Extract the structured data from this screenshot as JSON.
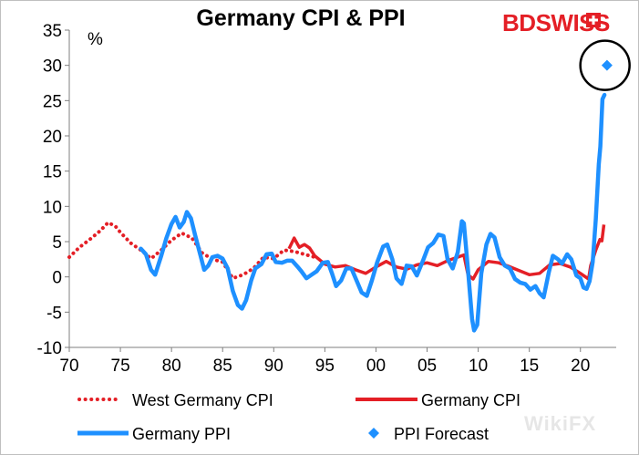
{
  "brand": {
    "name_part1": "BD",
    "name_part2": "SWISS",
    "color": "#e41f26"
  },
  "watermark": "WikiFX",
  "chart_data": {
    "type": "line",
    "title": "Germany CPI & PPI",
    "ylabel": "%",
    "xlabel": "",
    "ylim": [
      -10,
      35
    ],
    "yticks": [
      35,
      30,
      25,
      20,
      15,
      10,
      5,
      0,
      -5,
      -10
    ],
    "xlim": [
      1970,
      2023.5
    ],
    "xticks": [
      {
        "year": 1970,
        "label": "70"
      },
      {
        "year": 1975,
        "label": "75"
      },
      {
        "year": 1980,
        "label": "80"
      },
      {
        "year": 1985,
        "label": "85"
      },
      {
        "year": 1990,
        "label": "90"
      },
      {
        "year": 1995,
        "label": "95"
      },
      {
        "year": 2000,
        "label": "00"
      },
      {
        "year": 2005,
        "label": "05"
      },
      {
        "year": 2010,
        "label": "10"
      },
      {
        "year": 2015,
        "label": "15"
      },
      {
        "year": 2020,
        "label": "20"
      }
    ],
    "series": [
      {
        "name": "West Germany CPI",
        "style": "dotted",
        "color": "#e41f26",
        "points": [
          [
            1970,
            2.8
          ],
          [
            1971,
            4.2
          ],
          [
            1972,
            5.3
          ],
          [
            1973,
            6.5
          ],
          [
            1973.8,
            7.7
          ],
          [
            1974.5,
            7.2
          ],
          [
            1975,
            6.3
          ],
          [
            1976,
            4.8
          ],
          [
            1977,
            3.8
          ],
          [
            1978,
            2.6
          ],
          [
            1979,
            3.8
          ],
          [
            1980,
            5.2
          ],
          [
            1981,
            6.2
          ],
          [
            1982,
            5.5
          ],
          [
            1983,
            3.4
          ],
          [
            1984,
            2.5
          ],
          [
            1985,
            2.1
          ],
          [
            1986,
            -0.2
          ],
          [
            1987,
            0.3
          ],
          [
            1988,
            1.2
          ],
          [
            1989,
            2.8
          ],
          [
            1990,
            2.6
          ],
          [
            1991,
            3.8
          ],
          [
            1992,
            3.6
          ],
          [
            1993,
            3.2
          ],
          [
            1994,
            2.8
          ]
        ]
      },
      {
        "name": "Germany CPI",
        "style": "solid-red",
        "color": "#e41f26",
        "points": [
          [
            1991.5,
            4.0
          ],
          [
            1992,
            5.5
          ],
          [
            1992.5,
            4.2
          ],
          [
            1993,
            4.6
          ],
          [
            1993.5,
            4.1
          ],
          [
            1994,
            3.0
          ],
          [
            1995,
            1.8
          ],
          [
            1996,
            1.4
          ],
          [
            1997,
            1.6
          ],
          [
            1998,
            1.0
          ],
          [
            1999,
            0.5
          ],
          [
            2000,
            1.4
          ],
          [
            2001,
            2.2
          ],
          [
            2002,
            1.4
          ],
          [
            2003,
            1.1
          ],
          [
            2004,
            1.7
          ],
          [
            2005,
            2.0
          ],
          [
            2006,
            1.6
          ],
          [
            2007,
            2.3
          ],
          [
            2008,
            2.8
          ],
          [
            2008.6,
            3.1
          ],
          [
            2009,
            0.3
          ],
          [
            2009.5,
            -0.3
          ],
          [
            2010,
            1.0
          ],
          [
            2011,
            2.2
          ],
          [
            2012,
            2.0
          ],
          [
            2013,
            1.5
          ],
          [
            2014,
            0.9
          ],
          [
            2015,
            0.3
          ],
          [
            2016,
            0.5
          ],
          [
            2017,
            1.7
          ],
          [
            2018,
            1.9
          ],
          [
            2019,
            1.4
          ],
          [
            2020,
            0.5
          ],
          [
            2020.8,
            -0.3
          ],
          [
            2021,
            1.6
          ],
          [
            2021.5,
            3.8
          ],
          [
            2021.9,
            5.3
          ],
          [
            2022.1,
            5.1
          ],
          [
            2022.3,
            7.4
          ]
        ]
      },
      {
        "name": "Germany PPI",
        "style": "solid-blue",
        "color": "#1e90ff",
        "points": [
          [
            1977,
            4.0
          ],
          [
            1977.5,
            3.2
          ],
          [
            1978,
            1.0
          ],
          [
            1978.4,
            0.3
          ],
          [
            1979,
            3.0
          ],
          [
            1979.5,
            5.5
          ],
          [
            1980,
            7.5
          ],
          [
            1980.4,
            8.5
          ],
          [
            1980.8,
            7.0
          ],
          [
            1981.2,
            7.8
          ],
          [
            1981.5,
            9.2
          ],
          [
            1981.9,
            8.3
          ],
          [
            1982.3,
            6.0
          ],
          [
            1982.8,
            3.2
          ],
          [
            1983.2,
            1.0
          ],
          [
            1983.6,
            1.6
          ],
          [
            1984,
            2.8
          ],
          [
            1984.5,
            3.0
          ],
          [
            1985,
            2.6
          ],
          [
            1985.5,
            1.2
          ],
          [
            1986,
            -2.0
          ],
          [
            1986.5,
            -4.0
          ],
          [
            1986.9,
            -4.5
          ],
          [
            1987.3,
            -3.3
          ],
          [
            1987.8,
            -0.5
          ],
          [
            1988.2,
            1.2
          ],
          [
            1988.8,
            1.8
          ],
          [
            1989.3,
            3.2
          ],
          [
            1989.8,
            3.3
          ],
          [
            1990.2,
            2.1
          ],
          [
            1990.8,
            2.0
          ],
          [
            1991.3,
            2.3
          ],
          [
            1991.8,
            2.3
          ],
          [
            1992.3,
            1.5
          ],
          [
            1992.7,
            0.8
          ],
          [
            1993.2,
            -0.2
          ],
          [
            1993.7,
            0.3
          ],
          [
            1994.2,
            0.8
          ],
          [
            1994.8,
            2.0
          ],
          [
            1995.3,
            2.1
          ],
          [
            1995.7,
            0.5
          ],
          [
            1996.1,
            -1.3
          ],
          [
            1996.6,
            -0.5
          ],
          [
            1997.1,
            1.2
          ],
          [
            1997.6,
            1.2
          ],
          [
            1998.1,
            -0.5
          ],
          [
            1998.6,
            -2.2
          ],
          [
            1999.1,
            -2.7
          ],
          [
            1999.6,
            -0.5
          ],
          [
            2000.1,
            2.0
          ],
          [
            2000.7,
            4.3
          ],
          [
            2001.1,
            4.6
          ],
          [
            2001.6,
            2.5
          ],
          [
            2002,
            -0.2
          ],
          [
            2002.5,
            -1.0
          ],
          [
            2003,
            1.6
          ],
          [
            2003.5,
            1.5
          ],
          [
            2004,
            0.2
          ],
          [
            2004.6,
            2.3
          ],
          [
            2005.1,
            4.2
          ],
          [
            2005.6,
            4.8
          ],
          [
            2006.1,
            6.0
          ],
          [
            2006.6,
            5.8
          ],
          [
            2007,
            2.5
          ],
          [
            2007.5,
            1.2
          ],
          [
            2008,
            3.5
          ],
          [
            2008.4,
            7.9
          ],
          [
            2008.6,
            7.6
          ],
          [
            2009,
            1.0
          ],
          [
            2009.4,
            -6.0
          ],
          [
            2009.6,
            -7.6
          ],
          [
            2009.9,
            -6.8
          ],
          [
            2010.3,
            0.5
          ],
          [
            2010.8,
            4.6
          ],
          [
            2011.2,
            6.1
          ],
          [
            2011.6,
            5.6
          ],
          [
            2012.1,
            2.8
          ],
          [
            2012.6,
            1.6
          ],
          [
            2013.1,
            1.2
          ],
          [
            2013.6,
            -0.3
          ],
          [
            2014.1,
            -0.8
          ],
          [
            2014.6,
            -1.0
          ],
          [
            2015.1,
            -1.8
          ],
          [
            2015.6,
            -1.3
          ],
          [
            2016,
            -2.3
          ],
          [
            2016.4,
            -2.9
          ],
          [
            2016.9,
            0.6
          ],
          [
            2017.3,
            3.0
          ],
          [
            2017.8,
            2.5
          ],
          [
            2018.2,
            1.9
          ],
          [
            2018.7,
            3.2
          ],
          [
            2019.1,
            2.5
          ],
          [
            2019.6,
            0.2
          ],
          [
            2020,
            -0.2
          ],
          [
            2020.3,
            -1.5
          ],
          [
            2020.6,
            -1.7
          ],
          [
            2020.9,
            -0.6
          ],
          [
            2021.2,
            2.1
          ],
          [
            2021.5,
            8.2
          ],
          [
            2021.8,
            16.0
          ],
          [
            2021.95,
            18.5
          ],
          [
            2022.15,
            25.2
          ],
          [
            2022.35,
            25.8
          ]
        ]
      },
      {
        "name": "PPI Forecast",
        "style": "marker-diamond",
        "color": "#1e90ff",
        "points": [
          [
            2022.6,
            30.0
          ]
        ]
      }
    ],
    "annotations": [
      {
        "type": "ellipse",
        "around": "PPI Forecast",
        "x": 2022.4,
        "y": 30.0
      }
    ],
    "legend": [
      {
        "label": "West Germany CPI",
        "style": "dotted-red"
      },
      {
        "label": "Germany CPI",
        "style": "solid-red"
      },
      {
        "label": "Germany PPI",
        "style": "solid-blue"
      },
      {
        "label": "PPI Forecast",
        "style": "diamond-blue"
      }
    ]
  }
}
